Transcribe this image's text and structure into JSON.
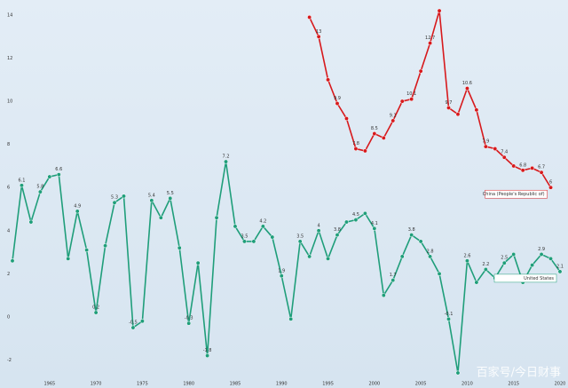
{
  "chart_data": {
    "type": "line",
    "x": [
      1961,
      1962,
      1963,
      1964,
      1965,
      1966,
      1967,
      1968,
      1969,
      1970,
      1971,
      1972,
      1973,
      1974,
      1975,
      1976,
      1977,
      1978,
      1979,
      1980,
      1981,
      1982,
      1983,
      1984,
      1985,
      1986,
      1987,
      1988,
      1989,
      1990,
      1991,
      1992,
      1993,
      1994,
      1995,
      1996,
      1997,
      1998,
      1999,
      2000,
      2001,
      2002,
      2003,
      2004,
      2005,
      2006,
      2007,
      2008,
      2009,
      2010,
      2011,
      2012,
      2013,
      2014,
      2015,
      2016,
      2017,
      2018,
      2019,
      2020
    ],
    "series": [
      {
        "name": "United States",
        "color": "#1f9e7a",
        "values": [
          2.6,
          6.1,
          4.4,
          5.8,
          6.5,
          6.6,
          2.7,
          4.9,
          3.1,
          0.2,
          3.3,
          5.3,
          5.6,
          -0.5,
          -0.2,
          5.4,
          4.6,
          5.5,
          3.2,
          -0.3,
          2.5,
          -1.8,
          4.6,
          7.2,
          4.2,
          3.5,
          3.5,
          4.2,
          3.7,
          1.9,
          -0.1,
          3.5,
          2.8,
          4.0,
          2.7,
          3.8,
          4.4,
          4.5,
          4.8,
          4.1,
          1.0,
          1.7,
          2.8,
          3.8,
          3.5,
          2.8,
          2.0,
          -0.1,
          -2.6,
          2.6,
          1.6,
          2.2,
          1.8,
          2.5,
          2.9,
          1.6,
          2.4,
          2.9,
          2.7,
          2.1
        ]
      },
      {
        "name": "China (People's Republic of)",
        "color": "#d7191c",
        "values": [
          null,
          null,
          null,
          null,
          null,
          null,
          null,
          null,
          null,
          null,
          null,
          null,
          null,
          null,
          null,
          null,
          null,
          null,
          null,
          null,
          null,
          null,
          null,
          null,
          null,
          null,
          null,
          null,
          null,
          null,
          null,
          null,
          13.9,
          13.0,
          11.0,
          9.9,
          9.2,
          7.8,
          7.7,
          8.5,
          8.3,
          9.1,
          10.0,
          10.1,
          11.4,
          12.7,
          14.2,
          9.7,
          9.4,
          10.6,
          9.6,
          7.9,
          7.8,
          7.4,
          7.0,
          6.8,
          6.9,
          6.7,
          6.0,
          null
        ]
      }
    ],
    "xlim": [
      1961,
      2020
    ],
    "xticks": [
      1965,
      1970,
      1975,
      1980,
      1985,
      1990,
      1995,
      2000,
      2005,
      2010,
      2015,
      2020
    ],
    "ylim": [
      -3.3,
      14.7
    ],
    "yticks": [
      14,
      12,
      10,
      8,
      6,
      4,
      2,
      0,
      -2
    ],
    "watermark": "百家号/今日财事"
  }
}
